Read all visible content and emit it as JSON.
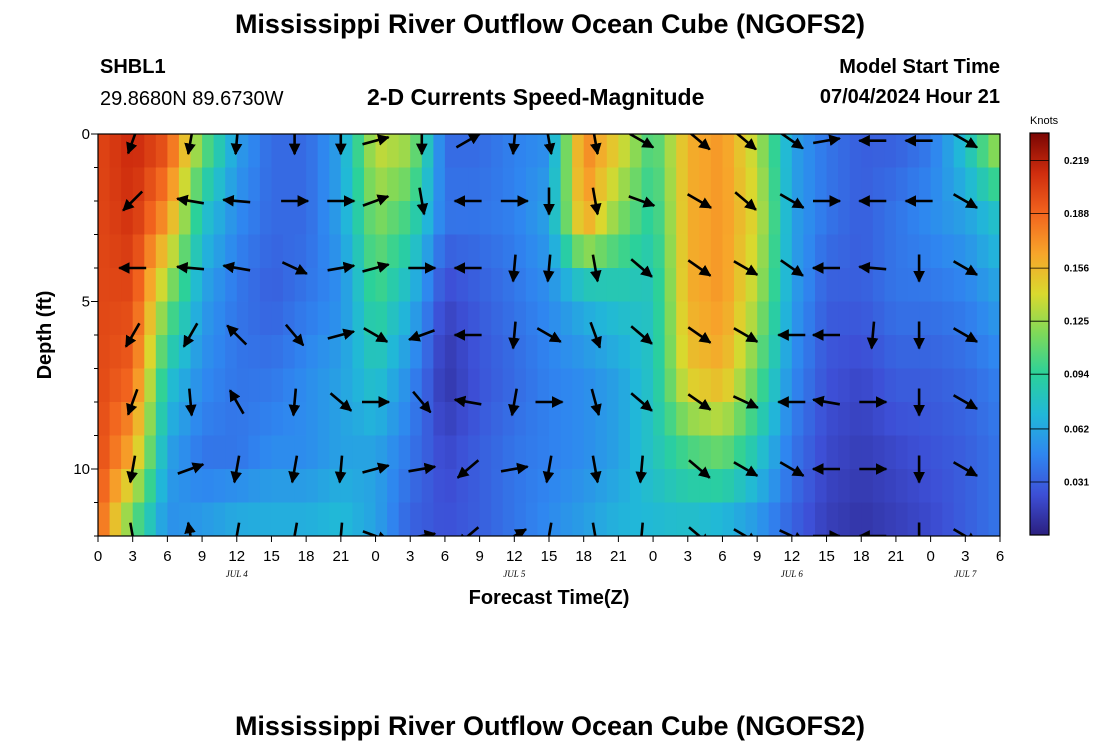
{
  "header": {
    "title": "Mississippi River Outflow Ocean Cube (NGOFS2)",
    "station_id": "SHBL1",
    "station_coords": "29.8680N  89.6730W",
    "subtitle": "2-D Currents Speed-Magnitude",
    "model_start_label": "Model Start Time",
    "model_start_value": "07/04/2024 Hour 21",
    "repeat_title": "Mississippi River Outflow Ocean Cube (NGOFS2)"
  },
  "colors": {
    "colormap": [
      "#2b1f7f",
      "#3d4fd6",
      "#2f86f0",
      "#21b8d8",
      "#2bd19a",
      "#7dd95a",
      "#d9d92e",
      "#f7a52a",
      "#f2641e",
      "#cf2d0e",
      "#7a0503"
    ]
  },
  "chart_data": {
    "type": "heatmap",
    "title": "2-D Currents Speed-Magnitude",
    "xlabel": "Forecast Time(Z)",
    "ylabel": "Depth (ft)",
    "colorbar_label": "Knots",
    "colorbar_ticks": [
      "0.219",
      "0.188",
      "0.156",
      "0.125",
      "0.094",
      "0.062",
      "0.031"
    ],
    "colorbar_tick_values": [
      0.219,
      0.188,
      0.156,
      0.125,
      0.094,
      0.062,
      0.031
    ],
    "value_range": [
      0.0,
      0.235
    ],
    "xlim_hours": [
      0,
      78
    ],
    "ylim_ft": [
      0,
      12
    ],
    "x_tick_labels": [
      "0",
      "3",
      "6",
      "9",
      "12",
      "15",
      "18",
      "21",
      "0",
      "3",
      "6",
      "9",
      "12",
      "15",
      "18",
      "21",
      "0",
      "3",
      "6",
      "9",
      "12",
      "15",
      "18",
      "21",
      "0",
      "3",
      "6"
    ],
    "y_ticks": [
      0,
      5,
      10
    ],
    "y_tick_labels": [
      "0",
      "5",
      "10"
    ],
    "day_labels": [
      {
        "label": "JUL 4",
        "hour": 12
      },
      {
        "label": "JUL 5",
        "hour": 36
      },
      {
        "label": "JUL 6",
        "hour": 60
      },
      {
        "label": "JUL 7",
        "hour": 75
      }
    ],
    "heat_columns": [
      {
        "hour": 0,
        "speeds": [
          0.2,
          0.2,
          0.2,
          0.2,
          0.2,
          0.19
        ]
      },
      {
        "hour": 3,
        "speeds": [
          0.215,
          0.21,
          0.2,
          0.19,
          0.16,
          0.1
        ]
      },
      {
        "hour": 6,
        "speeds": [
          0.2,
          0.17,
          0.12,
          0.08,
          0.06,
          0.05
        ]
      },
      {
        "hour": 9,
        "speeds": [
          0.12,
          0.08,
          0.06,
          0.05,
          0.04,
          0.06
        ]
      },
      {
        "hour": 12,
        "speeds": [
          0.06,
          0.05,
          0.04,
          0.04,
          0.04,
          0.07
        ]
      },
      {
        "hour": 15,
        "speeds": [
          0.035,
          0.035,
          0.03,
          0.04,
          0.05,
          0.07
        ]
      },
      {
        "hour": 18,
        "speeds": [
          0.035,
          0.035,
          0.04,
          0.05,
          0.05,
          0.07
        ]
      },
      {
        "hour": 21,
        "speeds": [
          0.06,
          0.06,
          0.05,
          0.06,
          0.06,
          0.075
        ]
      },
      {
        "hour": 24,
        "speeds": [
          0.14,
          0.12,
          0.1,
          0.08,
          0.06,
          0.06
        ]
      },
      {
        "hour": 27,
        "speeds": [
          0.13,
          0.1,
          0.07,
          0.05,
          0.04,
          0.03
        ]
      },
      {
        "hour": 30,
        "speeds": [
          0.035,
          0.04,
          0.02,
          0.01,
          0.02,
          0.025
        ]
      },
      {
        "hour": 33,
        "speeds": [
          0.035,
          0.04,
          0.03,
          0.025,
          0.03,
          0.03
        ]
      },
      {
        "hour": 36,
        "speeds": [
          0.045,
          0.045,
          0.04,
          0.035,
          0.04,
          0.04
        ]
      },
      {
        "hour": 39,
        "speeds": [
          0.05,
          0.06,
          0.05,
          0.045,
          0.045,
          0.05
        ]
      },
      {
        "hour": 42,
        "speeds": [
          0.18,
          0.17,
          0.07,
          0.05,
          0.05,
          0.06
        ]
      },
      {
        "hour": 45,
        "speeds": [
          0.15,
          0.12,
          0.08,
          0.06,
          0.06,
          0.07
        ]
      },
      {
        "hour": 48,
        "speeds": [
          0.1,
          0.09,
          0.08,
          0.08,
          0.08,
          0.07
        ]
      },
      {
        "hour": 51,
        "speeds": [
          0.16,
          0.16,
          0.16,
          0.15,
          0.1,
          0.07
        ]
      },
      {
        "hour": 54,
        "speeds": [
          0.17,
          0.17,
          0.17,
          0.16,
          0.11,
          0.06
        ]
      },
      {
        "hour": 57,
        "speeds": [
          0.13,
          0.14,
          0.13,
          0.11,
          0.08,
          0.05
        ]
      },
      {
        "hour": 60,
        "speeds": [
          0.06,
          0.06,
          0.06,
          0.05,
          0.04,
          0.03
        ]
      },
      {
        "hour": 63,
        "speeds": [
          0.04,
          0.04,
          0.03,
          0.025,
          0.02,
          0.015
        ]
      },
      {
        "hour": 66,
        "speeds": [
          0.03,
          0.03,
          0.03,
          0.02,
          0.015,
          0.01
        ]
      },
      {
        "hour": 69,
        "speeds": [
          0.03,
          0.04,
          0.04,
          0.03,
          0.02,
          0.015
        ]
      },
      {
        "hour": 72,
        "speeds": [
          0.04,
          0.05,
          0.04,
          0.03,
          0.025,
          0.02
        ]
      },
      {
        "hour": 75,
        "speeds": [
          0.08,
          0.06,
          0.045,
          0.035,
          0.03,
          0.03
        ]
      },
      {
        "hour": 78,
        "speeds": [
          0.14,
          0.08,
          0.06,
          0.045,
          0.04,
          0.04
        ]
      }
    ],
    "heat_depth_rows_ft": [
      0,
      2.4,
      4.8,
      7.2,
      9.6,
      12
    ],
    "vector_times_hours": [
      3,
      8,
      12,
      17,
      21,
      24,
      28,
      32,
      36,
      39,
      43,
      47,
      52,
      56,
      60,
      63,
      67,
      71,
      75
    ],
    "vector_depths_ft": [
      0.2,
      2.0,
      4.0,
      6.0,
      8.0,
      10.0,
      12.0
    ],
    "vector_angles_deg": [
      [
        -110,
        -100,
        -95,
        -90,
        -90,
        15,
        -90,
        30,
        -95,
        -80,
        -80,
        -30,
        -40,
        -40,
        -35,
        10,
        180,
        180,
        -30
      ],
      [
        -135,
        170,
        175,
        0,
        0,
        20,
        -80,
        180,
        0,
        -90,
        -80,
        -20,
        -30,
        -40,
        -30,
        0,
        180,
        180,
        -30
      ],
      [
        180,
        175,
        170,
        -25,
        10,
        15,
        0,
        180,
        -95,
        -95,
        -80,
        -40,
        -35,
        -30,
        -35,
        180,
        175,
        -90,
        -30
      ],
      [
        -120,
        -120,
        135,
        -50,
        15,
        -30,
        -160,
        180,
        -95,
        -30,
        -70,
        -40,
        -35,
        -30,
        180,
        180,
        -95,
        -90,
        -30
      ],
      [
        -110,
        -85,
        120,
        -95,
        -40,
        0,
        -50,
        170,
        -100,
        0,
        -75,
        -40,
        -35,
        -25,
        180,
        170,
        0,
        -90,
        -30
      ],
      [
        -100,
        20,
        -100,
        -100,
        -95,
        15,
        10,
        -140,
        10,
        -100,
        -80,
        -95,
        -40,
        -30,
        -30,
        180,
        0,
        -90,
        -30
      ],
      [
        -80,
        100,
        -100,
        -100,
        -95,
        -20,
        10,
        -140,
        30,
        -100,
        -80,
        -95,
        -40,
        -30,
        -25,
        0,
        180,
        -90,
        -30
      ]
    ]
  }
}
